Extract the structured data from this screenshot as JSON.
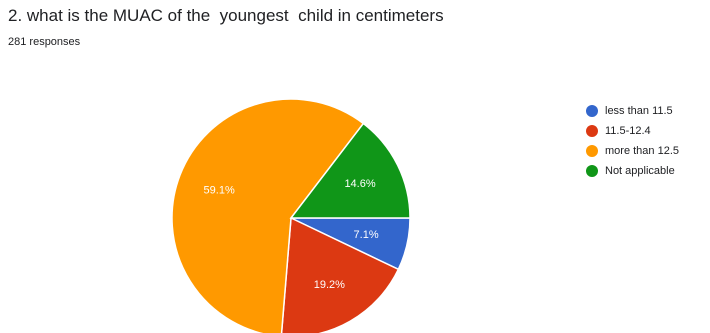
{
  "title": "2. what is the MUAC of the  youngest  child in centimeters",
  "response_count": "281 responses",
  "chart_data": {
    "type": "pie",
    "slices": [
      {
        "label": "less than 11.5",
        "value": 7.1,
        "value_label": "7.1%",
        "color": "#3366cc"
      },
      {
        "label": "11.5-12.4",
        "value": 19.2,
        "value_label": "19.2%",
        "color": "#dc3912"
      },
      {
        "label": "more than 12.5",
        "value": 59.1,
        "value_label": "59.1%",
        "color": "#ff9900"
      },
      {
        "label": "Not applicable",
        "value": 14.6,
        "value_label": "14.6%",
        "color": "#109618"
      }
    ],
    "legend_position": "right"
  }
}
